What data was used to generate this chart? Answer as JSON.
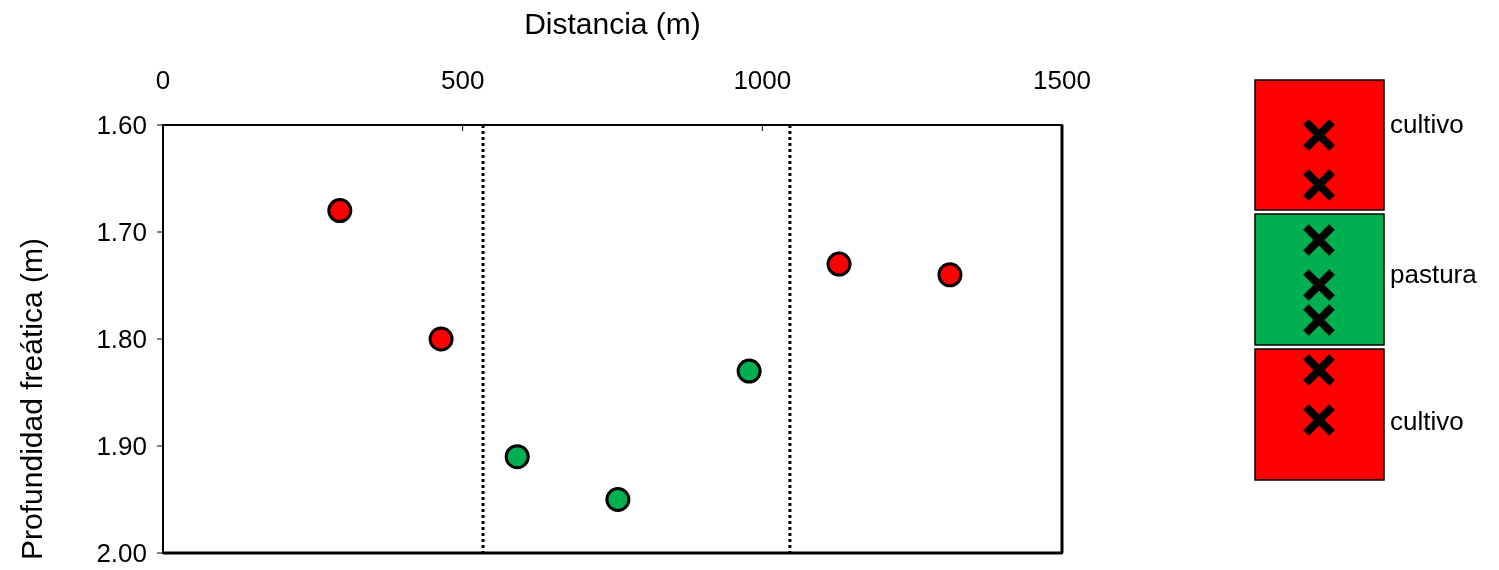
{
  "chart_data": {
    "type": "scatter",
    "xlabel": "Distancia (m)",
    "ylabel": "Profundidad freática (m)",
    "xlim": [
      0,
      1500
    ],
    "xticks": [
      0,
      500,
      1000,
      1500
    ],
    "ylim": [
      2.0,
      1.6
    ],
    "yticks": [
      {
        "value": 1.6,
        "label": "1.60"
      },
      {
        "value": 1.7,
        "label": "1.70"
      },
      {
        "value": 1.8,
        "label": "1.80"
      },
      {
        "value": 1.9,
        "label": "1.90"
      },
      {
        "value": 2.0,
        "label": "2.00"
      }
    ],
    "marker": "circle",
    "grid": false,
    "series": [
      {
        "color": "#ff0000",
        "x": [
          295,
          464,
          1128,
          1313
        ],
        "values": [
          1.68,
          1.8,
          1.73,
          1.74
        ]
      },
      {
        "color": "#00b050",
        "x": [
          591,
          759,
          978
        ],
        "values": [
          1.91,
          1.95,
          1.83
        ]
      }
    ],
    "ref_lines": [
      {
        "axis": "x",
        "value": 534,
        "line_style": "dotted",
        "color": "#000000"
      },
      {
        "axis": "x",
        "value": 1046,
        "line_style": "dotted",
        "color": "#000000"
      }
    ],
    "annotations": [
      "cultivo",
      "pastura",
      "cultivo"
    ]
  }
}
